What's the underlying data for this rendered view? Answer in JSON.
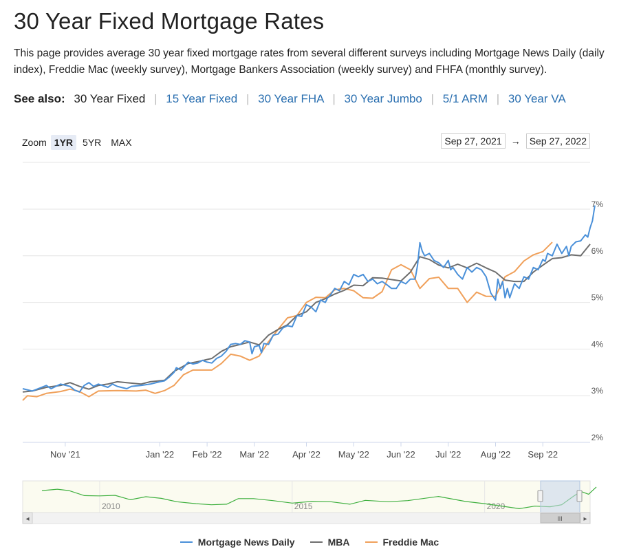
{
  "page": {
    "title": "30 Year Fixed Mortgage Rates",
    "description": "This page provides average 30 year fixed mortgage rates from several different surveys including Mortgage News Daily (daily index), Freddie Mac (weekly survey), Mortgage Bankers Association (weekly survey) and FHFA (monthly survey)."
  },
  "see_also": {
    "label": "See also:",
    "current": "30 Year Fixed",
    "links": [
      "15 Year Fixed",
      "30 Year FHA",
      "30 Year Jumbo",
      "5/1 ARM",
      "30 Year VA"
    ]
  },
  "zoom": {
    "label": "Zoom",
    "buttons": [
      "1YR",
      "5YR",
      "MAX"
    ],
    "active": "1YR"
  },
  "range": {
    "from": "Sep 27, 2021",
    "arrow": "→",
    "to": "Sep 27, 2022"
  },
  "navigator": {
    "labels": [
      "2010",
      "2015",
      "2020"
    ],
    "handle_glyph": "III",
    "left_arrow": "◂",
    "right_arrow": "▸"
  },
  "legend": [
    {
      "name": "Mortgage News Daily",
      "color": "#4a90d9"
    },
    {
      "name": "MBA",
      "color": "#6e6e6e"
    },
    {
      "name": "Freddie Mac",
      "color": "#f0a05a"
    }
  ],
  "chart_data": {
    "type": "line",
    "title": "",
    "xlabel": "",
    "ylabel": "",
    "x_range": [
      0,
      12
    ],
    "ylim": [
      2,
      7
    ],
    "y_ticks": [
      2,
      3,
      4,
      5,
      6,
      7
    ],
    "y_tick_labels": [
      "2%",
      "3%",
      "4%",
      "5%",
      "6%",
      "7%"
    ],
    "x_ticks": [
      {
        "label": "Nov '21",
        "x": 0.9
      },
      {
        "label": "Jan '22",
        "x": 2.9
      },
      {
        "label": "Feb '22",
        "x": 3.9
      },
      {
        "label": "Mar '22",
        "x": 4.9
      },
      {
        "label": "Apr '22",
        "x": 6.0
      },
      {
        "label": "May '22",
        "x": 7.0
      },
      {
        "label": "Jun '22",
        "x": 8.0
      },
      {
        "label": "Jul '22",
        "x": 9.0
      },
      {
        "label": "Aug '22",
        "x": 10.0
      },
      {
        "label": "Sep '22",
        "x": 11.0
      }
    ],
    "series": [
      {
        "name": "Mortgage News Daily",
        "color": "#4a90d9",
        "points": [
          [
            0.0,
            3.15
          ],
          [
            0.2,
            3.1
          ],
          [
            0.4,
            3.18
          ],
          [
            0.5,
            3.22
          ],
          [
            0.6,
            3.15
          ],
          [
            0.8,
            3.25
          ],
          [
            1.0,
            3.2
          ],
          [
            1.1,
            3.12
          ],
          [
            1.2,
            3.08
          ],
          [
            1.3,
            3.22
          ],
          [
            1.4,
            3.28
          ],
          [
            1.5,
            3.2
          ],
          [
            1.6,
            3.25
          ],
          [
            1.8,
            3.18
          ],
          [
            1.9,
            3.25
          ],
          [
            2.0,
            3.2
          ],
          [
            2.2,
            3.15
          ],
          [
            2.3,
            3.2
          ],
          [
            2.5,
            3.22
          ],
          [
            2.7,
            3.25
          ],
          [
            2.9,
            3.3
          ],
          [
            3.0,
            3.32
          ],
          [
            3.1,
            3.4
          ],
          [
            3.2,
            3.5
          ],
          [
            3.25,
            3.6
          ],
          [
            3.35,
            3.55
          ],
          [
            3.5,
            3.72
          ],
          [
            3.6,
            3.68
          ],
          [
            3.7,
            3.7
          ],
          [
            3.8,
            3.76
          ],
          [
            3.9,
            3.72
          ],
          [
            4.0,
            3.7
          ],
          [
            4.1,
            3.8
          ],
          [
            4.2,
            3.85
          ],
          [
            4.3,
            3.95
          ],
          [
            4.4,
            4.1
          ],
          [
            4.5,
            4.12
          ],
          [
            4.6,
            4.1
          ],
          [
            4.7,
            4.18
          ],
          [
            4.8,
            4.15
          ],
          [
            4.85,
            3.9
          ],
          [
            4.9,
            4.05
          ],
          [
            5.0,
            4.08
          ],
          [
            5.05,
            3.92
          ],
          [
            5.1,
            4.12
          ],
          [
            5.2,
            4.1
          ],
          [
            5.3,
            4.3
          ],
          [
            5.4,
            4.32
          ],
          [
            5.5,
            4.45
          ],
          [
            5.6,
            4.5
          ],
          [
            5.7,
            4.48
          ],
          [
            5.8,
            4.72
          ],
          [
            5.9,
            4.7
          ],
          [
            6.0,
            4.95
          ],
          [
            6.1,
            4.9
          ],
          [
            6.2,
            4.8
          ],
          [
            6.3,
            5.05
          ],
          [
            6.4,
            5.0
          ],
          [
            6.45,
            5.1
          ],
          [
            6.5,
            5.15
          ],
          [
            6.6,
            5.3
          ],
          [
            6.7,
            5.25
          ],
          [
            6.8,
            5.45
          ],
          [
            6.9,
            5.38
          ],
          [
            7.0,
            5.6
          ],
          [
            7.1,
            5.55
          ],
          [
            7.2,
            5.6
          ],
          [
            7.3,
            5.45
          ],
          [
            7.4,
            5.5
          ],
          [
            7.5,
            5.4
          ],
          [
            7.6,
            5.45
          ],
          [
            7.7,
            5.38
          ],
          [
            7.8,
            5.3
          ],
          [
            7.9,
            5.3
          ],
          [
            8.0,
            5.45
          ],
          [
            8.1,
            5.4
          ],
          [
            8.2,
            5.5
          ],
          [
            8.3,
            5.5
          ],
          [
            8.35,
            5.8
          ],
          [
            8.4,
            6.28
          ],
          [
            8.45,
            6.1
          ],
          [
            8.5,
            6.0
          ],
          [
            8.6,
            6.05
          ],
          [
            8.7,
            5.9
          ],
          [
            8.8,
            5.85
          ],
          [
            8.9,
            5.75
          ],
          [
            9.0,
            5.9
          ],
          [
            9.05,
            5.7
          ],
          [
            9.1,
            5.75
          ],
          [
            9.2,
            5.6
          ],
          [
            9.3,
            5.5
          ],
          [
            9.4,
            5.75
          ],
          [
            9.5,
            5.65
          ],
          [
            9.6,
            5.75
          ],
          [
            9.7,
            5.7
          ],
          [
            9.8,
            5.55
          ],
          [
            9.9,
            5.2
          ],
          [
            10.0,
            5.05
          ],
          [
            10.05,
            5.5
          ],
          [
            10.1,
            5.3
          ],
          [
            10.15,
            5.45
          ],
          [
            10.2,
            5.1
          ],
          [
            10.25,
            5.3
          ],
          [
            10.3,
            5.1
          ],
          [
            10.4,
            5.4
          ],
          [
            10.5,
            5.3
          ],
          [
            10.6,
            5.55
          ],
          [
            10.7,
            5.5
          ],
          [
            10.8,
            5.75
          ],
          [
            10.9,
            5.7
          ],
          [
            11.0,
            5.92
          ],
          [
            11.05,
            5.88
          ],
          [
            11.1,
            6.05
          ],
          [
            11.2,
            6.0
          ],
          [
            11.3,
            6.25
          ],
          [
            11.4,
            6.05
          ],
          [
            11.5,
            6.2
          ],
          [
            11.55,
            6.0
          ],
          [
            11.6,
            6.2
          ],
          [
            11.7,
            6.3
          ],
          [
            11.8,
            6.32
          ],
          [
            11.9,
            6.45
          ],
          [
            11.95,
            6.4
          ],
          [
            12.0,
            6.6
          ],
          [
            12.05,
            6.75
          ],
          [
            12.1,
            7.08
          ]
        ]
      },
      {
        "name": "MBA",
        "color": "#6e6e6e",
        "points": [
          [
            0.0,
            3.08
          ],
          [
            0.2,
            3.1
          ],
          [
            0.5,
            3.18
          ],
          [
            0.8,
            3.22
          ],
          [
            1.0,
            3.28
          ],
          [
            1.2,
            3.2
          ],
          [
            1.4,
            3.14
          ],
          [
            1.6,
            3.22
          ],
          [
            1.8,
            3.25
          ],
          [
            2.0,
            3.3
          ],
          [
            2.2,
            3.28
          ],
          [
            2.5,
            3.25
          ],
          [
            2.7,
            3.3
          ],
          [
            3.0,
            3.33
          ],
          [
            3.2,
            3.52
          ],
          [
            3.5,
            3.69
          ],
          [
            3.7,
            3.73
          ],
          [
            4.0,
            3.8
          ],
          [
            4.2,
            3.95
          ],
          [
            4.4,
            4.05
          ],
          [
            4.6,
            4.1
          ],
          [
            4.8,
            4.15
          ],
          [
            5.0,
            4.09
          ],
          [
            5.2,
            4.3
          ],
          [
            5.4,
            4.42
          ],
          [
            5.6,
            4.52
          ],
          [
            5.8,
            4.72
          ],
          [
            6.0,
            4.8
          ],
          [
            6.2,
            5.0
          ],
          [
            6.4,
            5.08
          ],
          [
            6.6,
            5.18
          ],
          [
            6.8,
            5.26
          ],
          [
            7.0,
            5.37
          ],
          [
            7.2,
            5.36
          ],
          [
            7.4,
            5.53
          ],
          [
            7.6,
            5.52
          ],
          [
            7.8,
            5.49
          ],
          [
            8.0,
            5.46
          ],
          [
            8.2,
            5.65
          ],
          [
            8.4,
            5.98
          ],
          [
            8.6,
            5.92
          ],
          [
            8.8,
            5.8
          ],
          [
            9.0,
            5.74
          ],
          [
            9.2,
            5.82
          ],
          [
            9.4,
            5.74
          ],
          [
            9.6,
            5.84
          ],
          [
            9.8,
            5.74
          ],
          [
            10.0,
            5.65
          ],
          [
            10.2,
            5.48
          ],
          [
            10.4,
            5.45
          ],
          [
            10.6,
            5.45
          ],
          [
            10.8,
            5.65
          ],
          [
            11.0,
            5.8
          ],
          [
            11.2,
            5.94
          ],
          [
            11.4,
            5.96
          ],
          [
            11.6,
            6.02
          ],
          [
            11.8,
            6.0
          ],
          [
            12.0,
            6.25
          ]
        ]
      },
      {
        "name": "Freddie Mac",
        "color": "#f0a05a",
        "points": [
          [
            0.0,
            2.9
          ],
          [
            0.1,
            3.0
          ],
          [
            0.3,
            2.98
          ],
          [
            0.5,
            3.05
          ],
          [
            0.8,
            3.09
          ],
          [
            1.0,
            3.14
          ],
          [
            1.2,
            3.09
          ],
          [
            1.4,
            2.98
          ],
          [
            1.6,
            3.1
          ],
          [
            2.0,
            3.11
          ],
          [
            2.4,
            3.1
          ],
          [
            2.6,
            3.12
          ],
          [
            2.8,
            3.05
          ],
          [
            3.0,
            3.11
          ],
          [
            3.2,
            3.22
          ],
          [
            3.4,
            3.45
          ],
          [
            3.6,
            3.55
          ],
          [
            3.8,
            3.55
          ],
          [
            4.0,
            3.55
          ],
          [
            4.2,
            3.69
          ],
          [
            4.4,
            3.89
          ],
          [
            4.6,
            3.85
          ],
          [
            4.8,
            3.76
          ],
          [
            5.0,
            3.85
          ],
          [
            5.2,
            4.16
          ],
          [
            5.4,
            4.42
          ],
          [
            5.6,
            4.67
          ],
          [
            5.8,
            4.72
          ],
          [
            6.0,
            5.0
          ],
          [
            6.2,
            5.11
          ],
          [
            6.4,
            5.1
          ],
          [
            6.6,
            5.27
          ],
          [
            6.8,
            5.3
          ],
          [
            7.0,
            5.25
          ],
          [
            7.2,
            5.1
          ],
          [
            7.4,
            5.09
          ],
          [
            7.6,
            5.23
          ],
          [
            7.8,
            5.7
          ],
          [
            8.0,
            5.81
          ],
          [
            8.2,
            5.7
          ],
          [
            8.4,
            5.3
          ],
          [
            8.6,
            5.51
          ],
          [
            8.8,
            5.54
          ],
          [
            9.0,
            5.3
          ],
          [
            9.2,
            5.3
          ],
          [
            9.4,
            5.0
          ],
          [
            9.6,
            5.22
          ],
          [
            9.8,
            5.13
          ],
          [
            10.0,
            5.13
          ],
          [
            10.2,
            5.55
          ],
          [
            10.4,
            5.66
          ],
          [
            10.6,
            5.89
          ],
          [
            10.8,
            6.02
          ],
          [
            11.0,
            6.09
          ],
          [
            11.2,
            6.29
          ]
        ]
      }
    ],
    "navigator_series": [
      [
        2008.5,
        5.95
      ],
      [
        2008.9,
        6.2
      ],
      [
        2009.2,
        5.95
      ],
      [
        2009.6,
        5.05
      ],
      [
        2010.0,
        5.0
      ],
      [
        2010.4,
        5.1
      ],
      [
        2010.8,
        4.3
      ],
      [
        2011.2,
        4.85
      ],
      [
        2011.6,
        4.55
      ],
      [
        2012.0,
        3.95
      ],
      [
        2012.5,
        3.6
      ],
      [
        2012.9,
        3.4
      ],
      [
        2013.3,
        3.5
      ],
      [
        2013.6,
        4.5
      ],
      [
        2014.0,
        4.5
      ],
      [
        2014.5,
        4.15
      ],
      [
        2015.0,
        3.7
      ],
      [
        2015.5,
        4.0
      ],
      [
        2016.0,
        3.95
      ],
      [
        2016.5,
        3.5
      ],
      [
        2016.9,
        4.2
      ],
      [
        2017.5,
        3.95
      ],
      [
        2018.0,
        4.15
      ],
      [
        2018.8,
        4.9
      ],
      [
        2019.5,
        4.0
      ],
      [
        2020.0,
        3.6
      ],
      [
        2020.5,
        3.1
      ],
      [
        2020.9,
        2.7
      ],
      [
        2021.3,
        3.15
      ],
      [
        2021.7,
        3.05
      ],
      [
        2022.0,
        3.4
      ],
      [
        2022.3,
        4.9
      ],
      [
        2022.5,
        5.8
      ],
      [
        2022.7,
        5.3
      ],
      [
        2022.9,
        6.6
      ]
    ],
    "navigator_range": [
      2008.0,
      2022.74,
      2.5,
      7.2
    ]
  }
}
